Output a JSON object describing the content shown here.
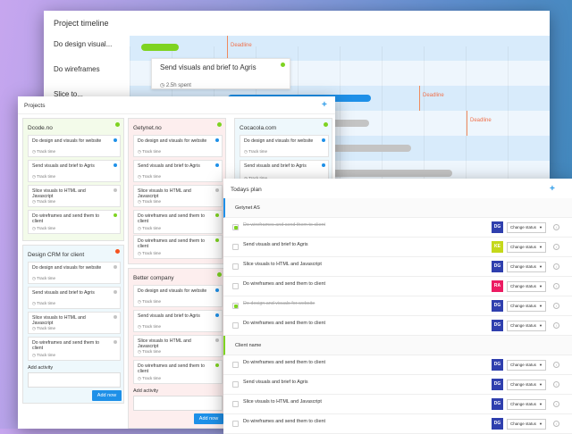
{
  "timeline": {
    "title": "Project timeline",
    "deadline_label": "Deadline",
    "rows": [
      {
        "label": "Do design visual..."
      },
      {
        "label": "Do wireframes"
      },
      {
        "label": "Slice to..."
      },
      {
        "label": ""
      },
      {
        "label": ""
      },
      {
        "label": ""
      }
    ],
    "tooltip": {
      "title": "Send visuals and brief to Agris",
      "spent": "2.5h spent",
      "status_color": "#7ed321"
    },
    "colors": {
      "green_bar": "#7ed321",
      "blue_bar": "#1e90e8",
      "gray_bar": "#c4c4c4",
      "deadline": "#f0704a"
    }
  },
  "projects": {
    "title": "Projects",
    "add_icon": "plus-icon",
    "track_label": "Track time",
    "add_activity_label": "Add activity",
    "add_button": "Add now",
    "columns": [
      {
        "name": "Dcode.no",
        "status_color": "#7ed321",
        "tasks": [
          {
            "title": "Do design and visuals for website",
            "dot": "#1e90e8"
          },
          {
            "title": "Send visuals and brief to Agris",
            "dot": "#1e90e8"
          },
          {
            "title": "Slice visuals to HTML and Javascript",
            "dot": "#c4c4c4"
          },
          {
            "title": "Do wireframes and send them to client",
            "dot": "#7ed321"
          }
        ]
      },
      {
        "name": "Getynet.no",
        "status_color": "#7ed321",
        "tasks": [
          {
            "title": "Do design and visuals for website",
            "dot": "#1e90e8"
          },
          {
            "title": "Send visuals and brief to Agris",
            "dot": "#1e90e8"
          },
          {
            "title": "Slice visuals to HTML and Javascript",
            "dot": "#c4c4c4"
          },
          {
            "title": "Do wireframes and send them to client",
            "dot": "#7ed321"
          },
          {
            "title": "Do wireframes and send them to client",
            "dot": "#7ed321"
          }
        ]
      },
      {
        "name": "Cocacola.com",
        "status_color": "#7ed321",
        "tasks": [
          {
            "title": "Do design and visuals for website",
            "dot": "#1e90e8"
          },
          {
            "title": "Send visuals and brief to Agris",
            "dot": "#1e90e8"
          }
        ]
      },
      {
        "name": "Design CRM for client",
        "status_color": "#f5521f",
        "tasks": [
          {
            "title": "Do design and visuals for website",
            "dot": "#c4c4c4"
          },
          {
            "title": "Send visuals and brief to Agris",
            "dot": "#c4c4c4"
          },
          {
            "title": "Slice visuals to HTML and Javascript",
            "dot": "#c4c4c4"
          },
          {
            "title": "Do wireframes and send them to client",
            "dot": "#c4c4c4"
          }
        ]
      },
      {
        "name": "Better company",
        "status_color": "#7ed321",
        "tasks": [
          {
            "title": "Do design and visuals for website",
            "dot": "#1e90e8"
          },
          {
            "title": "Send visuals and brief to Agris",
            "dot": "#1e90e8"
          },
          {
            "title": "Slice visuals to HTML and Javascript",
            "dot": "#c4c4c4"
          },
          {
            "title": "Do wireframes and send them to client",
            "dot": "#7ed321"
          }
        ]
      }
    ]
  },
  "plan": {
    "title": "Todays plan",
    "add_icon": "plus-icon",
    "status_select": "Change status",
    "groups": [
      {
        "name": "Getynet AS",
        "accent": "#1e90e8",
        "items": [
          {
            "title": "Do wireframes and send them to client",
            "done": true,
            "avatar": "DG",
            "avatar_color": "#2f3fae"
          },
          {
            "title": "Send visuals and brief to Agris",
            "done": false,
            "avatar": "KE",
            "avatar_color": "#c5d81a"
          },
          {
            "title": "Slice visuals to HTML and Javascript",
            "done": false,
            "avatar": "DG",
            "avatar_color": "#2f3fae"
          },
          {
            "title": "Do wireframes and send them to client",
            "done": false,
            "avatar": "RA",
            "avatar_color": "#ec1b62"
          },
          {
            "title": "Do design and visuals for website",
            "done": true,
            "avatar": "DG",
            "avatar_color": "#2f3fae"
          },
          {
            "title": "Do wireframes and send them to client",
            "done": false,
            "avatar": "DG",
            "avatar_color": "#2f3fae"
          }
        ]
      },
      {
        "name": "Client name",
        "accent": "#7ed321",
        "items": [
          {
            "title": "Do wireframes and send them to client",
            "done": false,
            "avatar": "DG",
            "avatar_color": "#2f3fae"
          },
          {
            "title": "Send visuals and brief to Agris",
            "done": false,
            "avatar": "DG",
            "avatar_color": "#2f3fae"
          },
          {
            "title": "Slice visuals to HTML and Javascript",
            "done": false,
            "avatar": "DG",
            "avatar_color": "#2f3fae"
          },
          {
            "title": "Do wireframes and send them to client",
            "done": false,
            "avatar": "DG",
            "avatar_color": "#2f3fae"
          }
        ]
      }
    ]
  }
}
